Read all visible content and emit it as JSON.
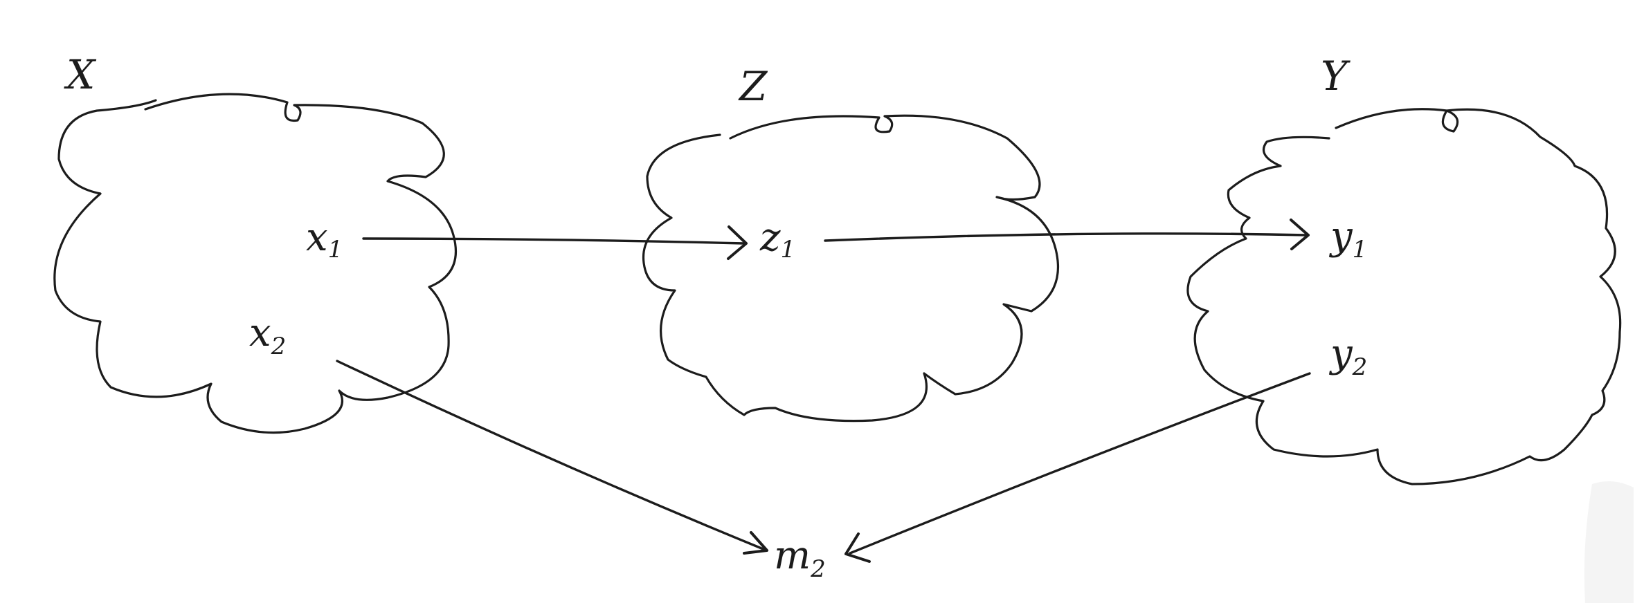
{
  "sets": [
    {
      "id": "X",
      "label": "X"
    },
    {
      "id": "Z",
      "label": "Z"
    },
    {
      "id": "Y",
      "label": "Y"
    }
  ],
  "nodes": [
    {
      "id": "x1",
      "base": "x",
      "sub": "1",
      "set": "X"
    },
    {
      "id": "x2",
      "base": "x",
      "sub": "2",
      "set": "X"
    },
    {
      "id": "z1",
      "base": "z",
      "sub": "1",
      "set": "Z"
    },
    {
      "id": "y1",
      "base": "y",
      "sub": "1",
      "set": "Y"
    },
    {
      "id": "y2",
      "base": "y",
      "sub": "2",
      "set": "Y"
    },
    {
      "id": "m2",
      "base": "m",
      "sub": "2",
      "set": null
    }
  ],
  "edges": [
    {
      "from": "x1",
      "to": "z1"
    },
    {
      "from": "z1",
      "to": "y1"
    },
    {
      "from": "x2",
      "to": "m2"
    },
    {
      "from": "y2",
      "to": "m2"
    }
  ]
}
